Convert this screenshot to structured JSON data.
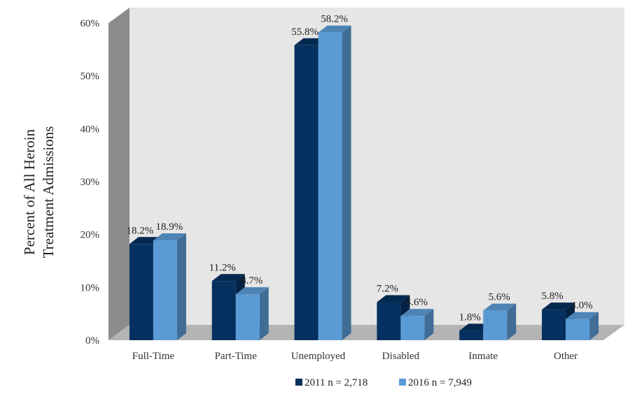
{
  "chart_data": {
    "type": "bar",
    "style": "3d-clustered-column",
    "ylabel_lines": [
      "Percent of All Heroin",
      "Treatment Admissions"
    ],
    "xlabel": "",
    "categories": [
      "Full-Time",
      "Part-Time",
      "Unemployed",
      "Disabled",
      "Inmate",
      "Other"
    ],
    "series": [
      {
        "name": "2011  n = 2,718",
        "color": "#05305f",
        "values": [
          18.2,
          11.2,
          55.8,
          7.2,
          1.8,
          5.8
        ],
        "labels": [
          "18.2%",
          "11.2%",
          "55.8%",
          "7.2%",
          "1.8%",
          "5.8%"
        ]
      },
      {
        "name": "2016  n = 7,949",
        "color": "#5b9bd5",
        "values": [
          18.9,
          8.7,
          58.2,
          4.6,
          5.6,
          4.0
        ],
        "labels": [
          "18.9%",
          "8.7%",
          "58.2%",
          "4.6%",
          "5.6%",
          "4.0%"
        ]
      }
    ],
    "ylim": [
      0,
      60
    ],
    "yticks": [
      "0%",
      "10%",
      "20%",
      "30%",
      "40%",
      "50%",
      "60%"
    ],
    "grid": false,
    "legend_position": "bottom",
    "colors": {
      "back_wall": "#e6e6e6",
      "side_wall": "#8c8c8c",
      "floor": "#b4b4b4"
    }
  }
}
